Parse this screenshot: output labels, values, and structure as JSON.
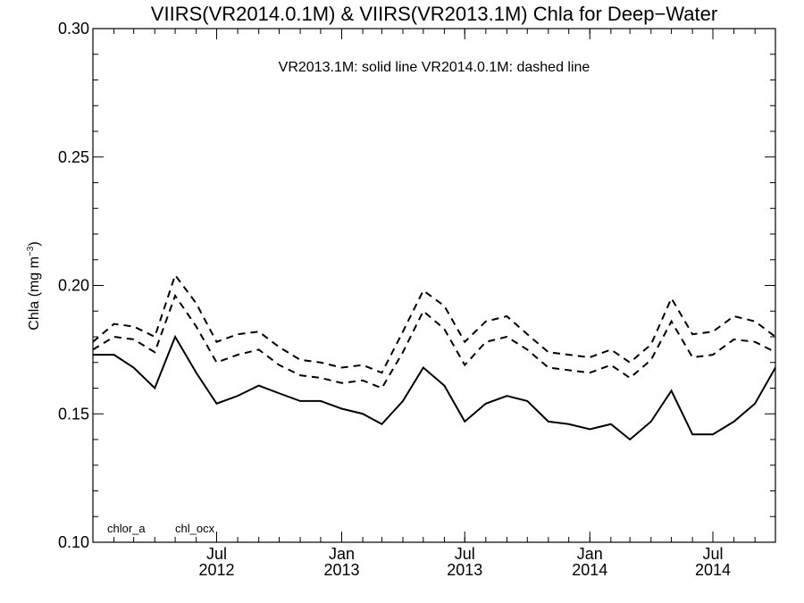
{
  "chart_data": {
    "type": "line",
    "title": "VIIRS(VR2014.0.1M) & VIIRS(VR2013.1M)  Chla for Deep−Water",
    "annotation": "VR2013.1M: solid line   VR2014.0.1M: dashed line",
    "ylabel": "Chla (mg m",
    "ylabel_sup": "−3",
    "ylabel_close": ")",
    "ylim": [
      0.1,
      0.3
    ],
    "y_ticks": [
      0.1,
      0.15,
      0.2,
      0.25,
      0.3
    ],
    "y_tick_labels": [
      "0.10",
      "0.15",
      "0.20",
      "0.25",
      "0.30"
    ],
    "x_tick_labels": [
      {
        "month": "Jul",
        "year": "2012",
        "date": "2012-07-01"
      },
      {
        "month": "Jan",
        "year": "2013",
        "date": "2013-01-01"
      },
      {
        "month": "Jul",
        "year": "2013",
        "date": "2013-07-01"
      },
      {
        "month": "Jan",
        "year": "2014",
        "date": "2014-01-01"
      },
      {
        "month": "Jul",
        "year": "2014",
        "date": "2014-07-01"
      }
    ],
    "xlim": [
      "2012-01-01",
      "2014-10-01"
    ],
    "x": [
      "2012-01-01",
      "2012-02-01",
      "2012-03-01",
      "2012-04-01",
      "2012-05-01",
      "2012-06-01",
      "2012-07-01",
      "2012-08-01",
      "2012-09-01",
      "2012-10-01",
      "2012-11-01",
      "2012-12-01",
      "2013-01-01",
      "2013-02-01",
      "2013-03-01",
      "2013-04-01",
      "2013-05-01",
      "2013-06-01",
      "2013-07-01",
      "2013-08-01",
      "2013-09-01",
      "2013-10-01",
      "2013-11-01",
      "2013-12-01",
      "2014-01-01",
      "2014-02-01",
      "2014-03-01",
      "2014-04-01",
      "2014-05-01",
      "2014-06-01",
      "2014-07-01",
      "2014-08-01",
      "2014-09-01",
      "2014-10-01"
    ],
    "legend_labels": [
      "chlor_a",
      "chl_ocx"
    ],
    "series": [
      {
        "product": "chlor_a",
        "version": "VR2013.1M",
        "line_style": "solid",
        "values": [
          0.173,
          0.173,
          0.168,
          0.16,
          0.18,
          0.166,
          0.154,
          0.157,
          0.161,
          0.158,
          0.155,
          0.155,
          0.152,
          0.15,
          0.146,
          0.155,
          0.168,
          0.161,
          0.147,
          0.154,
          0.157,
          0.155,
          0.147,
          0.146,
          0.144,
          0.146,
          0.14,
          0.147,
          0.159,
          0.142,
          0.142,
          0.147,
          0.154,
          0.168
        ]
      },
      {
        "product": "chlor_a",
        "version": "VR2014.0.1M",
        "line_style": "dashed",
        "values": [
          0.175,
          0.18,
          0.179,
          0.174,
          0.196,
          0.184,
          0.17,
          0.173,
          0.175,
          0.169,
          0.165,
          0.164,
          0.162,
          0.163,
          0.16,
          0.174,
          0.19,
          0.183,
          0.169,
          0.178,
          0.18,
          0.175,
          0.168,
          0.167,
          0.166,
          0.169,
          0.164,
          0.171,
          0.186,
          0.172,
          0.173,
          0.179,
          0.178,
          0.174
        ]
      },
      {
        "product": "chl_ocx",
        "version": "VR2014.0.1M",
        "line_style": "dashed",
        "values": [
          0.178,
          0.185,
          0.184,
          0.18,
          0.204,
          0.193,
          0.178,
          0.181,
          0.182,
          0.176,
          0.171,
          0.17,
          0.168,
          0.169,
          0.166,
          0.182,
          0.198,
          0.192,
          0.178,
          0.186,
          0.188,
          0.181,
          0.174,
          0.173,
          0.172,
          0.175,
          0.17,
          0.177,
          0.195,
          0.181,
          0.182,
          0.188,
          0.186,
          0.18
        ]
      }
    ],
    "grid": false,
    "colors": {
      "line": "#000000",
      "background": "#ffffff"
    }
  }
}
